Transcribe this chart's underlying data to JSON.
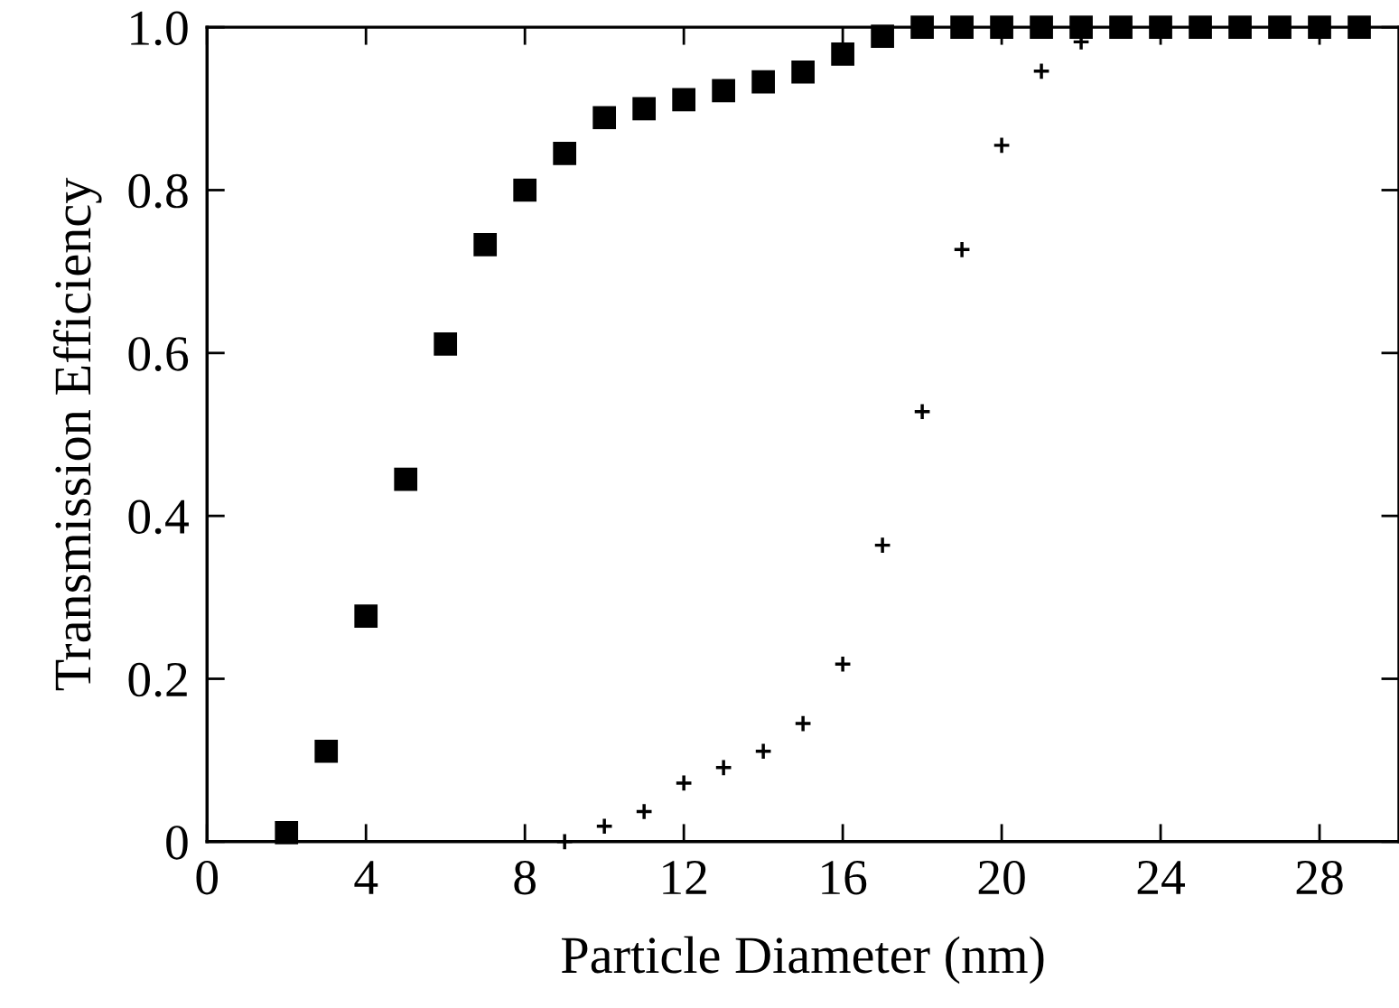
{
  "chart_data": {
    "type": "scatter",
    "xlabel": "Particle Diameter (nm)",
    "ylabel": "Transmission Efficiency",
    "xlim": [
      0,
      30
    ],
    "ylim": [
      0,
      1.0
    ],
    "xticks": [
      0,
      4,
      8,
      12,
      16,
      20,
      24,
      28
    ],
    "yticks": [
      0,
      0.2,
      0.4,
      0.6,
      0.8,
      {
        "value": 1.0,
        "label": "1.0"
      }
    ],
    "grid": false,
    "legend": false,
    "series": [
      {
        "color": "#000000",
        "marker": "square",
        "x": [
          2,
          3,
          4,
          5,
          6,
          7,
          8,
          9,
          10,
          11,
          12,
          13,
          14,
          15,
          16,
          17,
          18,
          19,
          20,
          21,
          22,
          23,
          24,
          25,
          26,
          27,
          28,
          29
        ],
        "values": [
          0.011,
          0.111,
          0.277,
          0.445,
          0.611,
          0.733,
          0.8,
          0.845,
          0.889,
          0.9,
          0.911,
          0.922,
          0.933,
          0.945,
          0.967,
          0.989,
          1.0,
          1.0,
          1.0,
          1.0,
          1.0,
          1.0,
          1.0,
          1.0,
          1.0,
          1.0,
          1.0,
          1.0
        ]
      },
      {
        "color": "#000000",
        "marker": "cross",
        "x": [
          9,
          10,
          11,
          12,
          13,
          14,
          15,
          16,
          17,
          18,
          19,
          20,
          21,
          22
        ],
        "values": [
          0.0,
          0.019,
          0.037,
          0.072,
          0.091,
          0.111,
          0.145,
          0.218,
          0.364,
          0.528,
          0.727,
          0.855,
          0.946,
          0.982
        ]
      }
    ]
  }
}
